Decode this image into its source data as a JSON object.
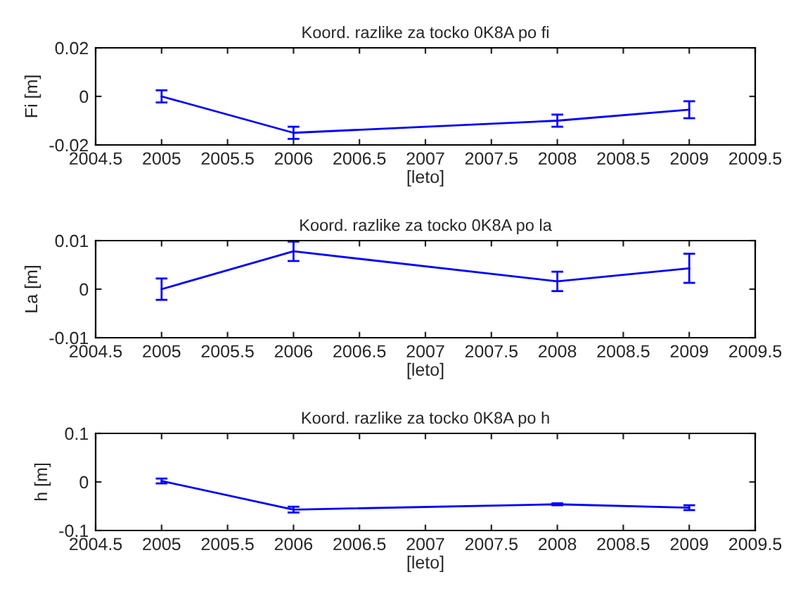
{
  "chart_data": [
    {
      "type": "line",
      "title": "Koord. razlike za tocko 0K8A po fi",
      "xlabel": "[leto]",
      "ylabel": "Fi [m]",
      "x": [
        2005,
        2006,
        2008,
        2009
      ],
      "series": [
        {
          "color": "#0000ff",
          "values": [
            0,
            -0.015,
            -0.01,
            -0.0055
          ],
          "errors": [
            0.0025,
            0.0025,
            0.0025,
            0.0035
          ]
        }
      ],
      "xlim": [
        2004.5,
        2009.5
      ],
      "xticks": [
        2004.5,
        2005,
        2005.5,
        2006,
        2006.5,
        2007,
        2007.5,
        2008,
        2008.5,
        2009,
        2009.5
      ],
      "ylim": [
        -0.02,
        0.02
      ],
      "yticks": [
        {
          "value": -0.02,
          "label": "-0.02"
        },
        0,
        0.02
      ],
      "grid": false,
      "legend": false
    },
    {
      "type": "line",
      "title": "Koord. razlike za tocko 0K8A po la",
      "xlabel": "[leto]",
      "ylabel": "La [m]",
      "x": [
        2005,
        2006,
        2008,
        2009
      ],
      "series": [
        {
          "color": "#0000ff",
          "values": [
            0,
            0.0078,
            0.0016,
            0.0043
          ],
          "errors": [
            0.0022,
            0.002,
            0.002,
            0.003
          ]
        }
      ],
      "xlim": [
        2004.5,
        2009.5
      ],
      "xticks": [
        2004.5,
        2005,
        2005.5,
        2006,
        2006.5,
        2007,
        2007.5,
        2008,
        2008.5,
        2009,
        2009.5
      ],
      "ylim": [
        -0.01,
        0.01
      ],
      "yticks": [
        {
          "value": -0.01,
          "label": "-0.01"
        },
        0,
        0.01
      ],
      "grid": false,
      "legend": false
    },
    {
      "type": "line",
      "title": "Koord. razlike za tocko 0K8A po h",
      "xlabel": "[leto]",
      "ylabel": "h [m]",
      "x": [
        2005,
        2006,
        2008,
        2009
      ],
      "series": [
        {
          "color": "#0000ff",
          "values": [
            0.002,
            -0.057,
            -0.046,
            -0.053
          ],
          "errors": [
            0.005,
            0.006,
            0.002,
            0.005
          ]
        }
      ],
      "xlim": [
        2004.5,
        2009.5
      ],
      "xticks": [
        2004.5,
        2005,
        2005.5,
        2006,
        2006.5,
        2007,
        2007.5,
        2008,
        2008.5,
        2009,
        2009.5
      ],
      "ylim": [
        -0.1,
        0.1
      ],
      "yticks": [
        {
          "value": -0.1,
          "label": "-0.1"
        },
        0,
        0.1
      ],
      "grid": false,
      "legend": false
    }
  ]
}
